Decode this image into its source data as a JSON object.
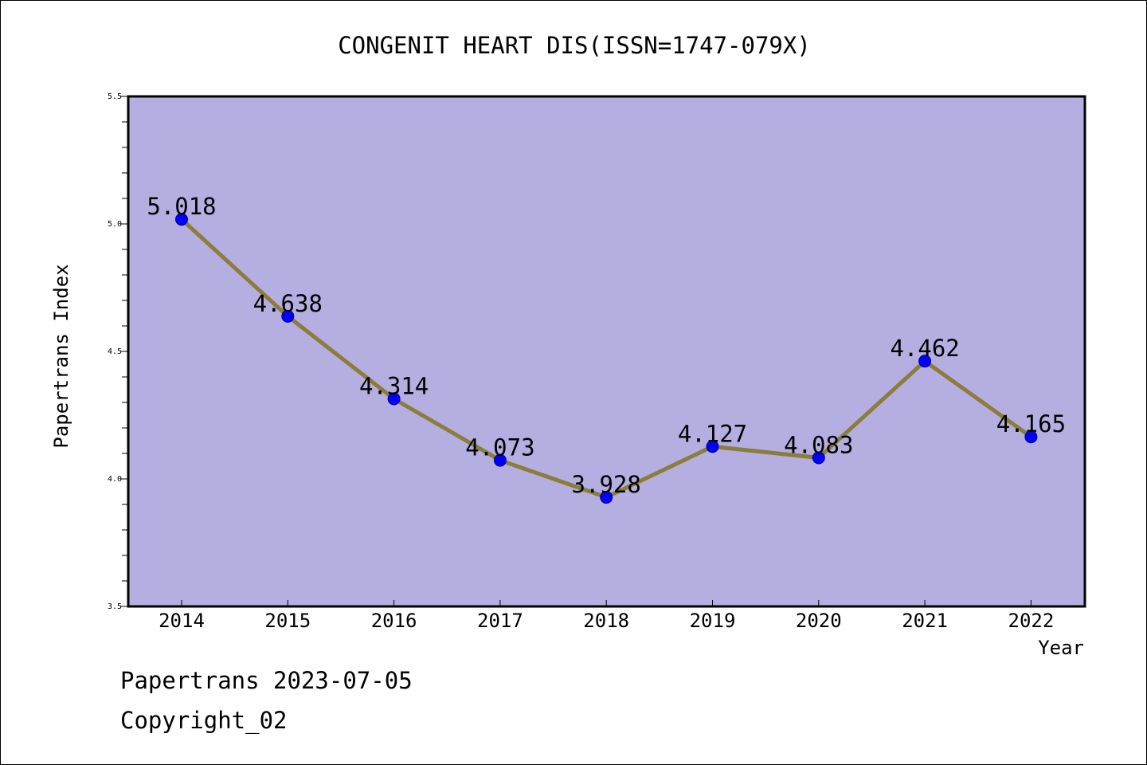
{
  "chart_data": {
    "type": "line",
    "title": "CONGENIT HEART DIS(ISSN=1747-079X)",
    "xlabel": "Year",
    "ylabel": "Papertrans Index",
    "categories": [
      "2014",
      "2015",
      "2016",
      "2017",
      "2018",
      "2019",
      "2020",
      "2021",
      "2022"
    ],
    "series": [
      {
        "values": [
          5.018,
          4.638,
          4.314,
          4.073,
          3.928,
          4.127,
          4.083,
          4.462,
          4.165
        ],
        "labels": [
          "5.018",
          "4.638",
          "4.314",
          "4.073",
          "3.928",
          "4.127",
          "4.083",
          "4.462",
          "4.165"
        ]
      }
    ],
    "ylim": [
      3.5,
      5.5
    ],
    "yticks": [
      "3.5",
      "4.0",
      "4.5",
      "5.0",
      "5.5"
    ],
    "grid": false,
    "colors": {
      "plot_background": "#b5aee1",
      "line": "#8b7d3a",
      "marker": "#0000ff",
      "axes": "#000000"
    }
  },
  "footer": {
    "line1": "Papertrans 2023-07-05",
    "line2": "Copyright_02"
  }
}
